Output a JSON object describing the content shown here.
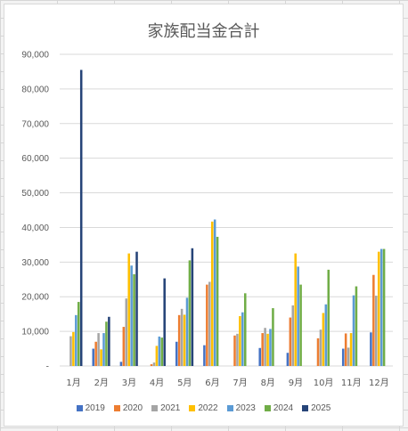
{
  "chart_data": {
    "type": "bar",
    "title": "家族配当金合計",
    "categories": [
      "1月",
      "2月",
      "3月",
      "4月",
      "5月",
      "6月",
      "7月",
      "8月",
      "9月",
      "10月",
      "11月",
      "12月"
    ],
    "ylim": [
      0,
      90000
    ],
    "yticks": [
      0,
      10000,
      20000,
      30000,
      40000,
      50000,
      60000,
      70000,
      80000,
      90000
    ],
    "ytick_labels": [
      "-",
      "10,000",
      "20,000",
      "30,000",
      "40,000",
      "50,000",
      "60,000",
      "70,000",
      "80,000",
      "90,000"
    ],
    "grid": true,
    "legend_position": "bottom",
    "series": [
      {
        "name": "2019",
        "color": "#4472C4",
        "values": [
          0,
          5000,
          1200,
          0,
          7000,
          6000,
          0,
          5200,
          3800,
          0,
          5000,
          9700
        ]
      },
      {
        "name": "2020",
        "color": "#ED7D31",
        "values": [
          0,
          7000,
          11300,
          500,
          14700,
          23500,
          8800,
          9500,
          14000,
          8000,
          9400,
          26300
        ]
      },
      {
        "name": "2021",
        "color": "#A5A5A5",
        "values": [
          8600,
          9500,
          19500,
          1000,
          16500,
          24300,
          9300,
          11000,
          17500,
          10500,
          5300,
          20300
        ]
      },
      {
        "name": "2022",
        "color": "#FFC000",
        "values": [
          9800,
          4800,
          32500,
          5800,
          14800,
          41700,
          14400,
          9300,
          32500,
          15300,
          9500,
          33000
        ]
      },
      {
        "name": "2023",
        "color": "#5B9BD5",
        "values": [
          14700,
          9500,
          29000,
          8500,
          19700,
          42300,
          15500,
          10700,
          28700,
          17800,
          20400,
          33800
        ]
      },
      {
        "name": "2024",
        "color": "#70AD47",
        "values": [
          18500,
          12800,
          26500,
          8200,
          30500,
          37300,
          21000,
          16700,
          23500,
          27800,
          23000,
          33800
        ]
      },
      {
        "name": "2025",
        "color": "#264478",
        "values": [
          85500,
          14200,
          33000,
          25300,
          34000,
          0,
          0,
          0,
          0,
          0,
          0,
          0
        ]
      }
    ]
  }
}
